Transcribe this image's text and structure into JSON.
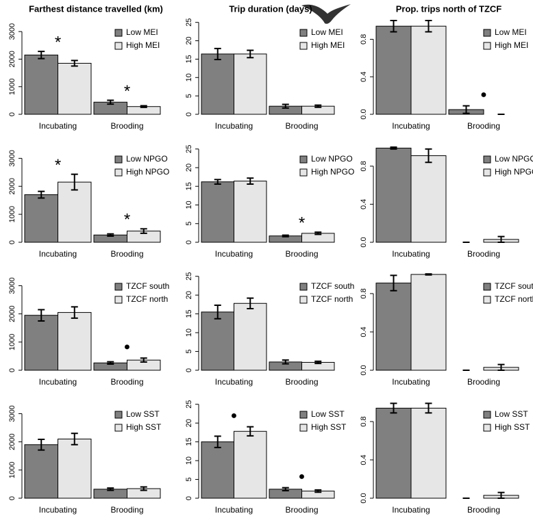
{
  "chart_data": [
    {
      "type": "bar",
      "title": "Farthest distance travelled (km)",
      "categories": [
        "Incubating",
        "Brooding"
      ],
      "annotations": [
        "*",
        "*"
      ],
      "series": [
        {
          "name": "Low MEI",
          "color": "#808080",
          "values": [
            2150,
            440
          ],
          "errors": [
            130,
            70
          ]
        },
        {
          "name": "High MEI",
          "color": "#e6e6e6",
          "values": [
            1850,
            280
          ],
          "errors": [
            100,
            30
          ]
        }
      ],
      "ylim": [
        0,
        3400
      ],
      "yticks": [
        0,
        1000,
        2000,
        3000
      ]
    },
    {
      "type": "bar",
      "title": "Trip duration (days)",
      "categories": [
        "Incubating",
        "Brooding"
      ],
      "annotations": [
        null,
        null
      ],
      "series": [
        {
          "name": "Low MEI",
          "color": "#808080",
          "values": [
            16.4,
            2.2
          ],
          "errors": [
            1.5,
            0.5
          ]
        },
        {
          "name": "High MEI",
          "color": "#e6e6e6",
          "values": [
            16.4,
            2.2
          ],
          "errors": [
            1.0,
            0.3
          ]
        }
      ],
      "ylim": [
        0,
        25.5
      ],
      "yticks": [
        0,
        5,
        10,
        15,
        20,
        25
      ]
    },
    {
      "type": "bar",
      "title": "Prop. trips north of TZCF",
      "categories": [
        "Incubating",
        "Brooding"
      ],
      "annotations": [
        null,
        "●"
      ],
      "series": [
        {
          "name": "Low MEI",
          "color": "#808080",
          "values": [
            0.94,
            0.05
          ],
          "errors": [
            0.06,
            0.04
          ]
        },
        {
          "name": "High MEI",
          "color": "#e6e6e6",
          "values": [
            0.94,
            0.0
          ],
          "errors": [
            0.06,
            0.0
          ]
        }
      ],
      "ylim": [
        0,
        1.0
      ],
      "yticks": [
        {
          "value": 0,
          "label": "0.0"
        },
        0.4,
        0.8
      ]
    },
    {
      "type": "bar",
      "categories": [
        "Incubating",
        "Brooding"
      ],
      "annotations": [
        "*",
        "*"
      ],
      "series": [
        {
          "name": "Low NPGO",
          "color": "#808080",
          "values": [
            1700,
            260
          ],
          "errors": [
            120,
            40
          ]
        },
        {
          "name": "High NPGO",
          "color": "#e6e6e6",
          "values": [
            2150,
            400
          ],
          "errors": [
            280,
            80
          ]
        }
      ],
      "ylim": [
        0,
        3400
      ],
      "yticks": [
        0,
        1000,
        2000,
        3000
      ]
    },
    {
      "type": "bar",
      "categories": [
        "Incubating",
        "Brooding"
      ],
      "annotations": [
        null,
        "*"
      ],
      "series": [
        {
          "name": "Low NPGO",
          "color": "#808080",
          "values": [
            16.2,
            1.7
          ],
          "errors": [
            0.6,
            0.2
          ]
        },
        {
          "name": "High NPGO",
          "color": "#e6e6e6",
          "values": [
            16.4,
            2.4
          ],
          "errors": [
            0.8,
            0.3
          ]
        }
      ],
      "ylim": [
        0,
        25.5
      ],
      "yticks": [
        0,
        5,
        10,
        15,
        20,
        25
      ]
    },
    {
      "type": "bar",
      "categories": [
        "Incubating",
        "Brooding"
      ],
      "annotations": [
        null,
        null
      ],
      "series": [
        {
          "name": "Low NPGO",
          "color": "#808080",
          "values": [
            0.99,
            0.0
          ],
          "errors": [
            0.01,
            0.0
          ]
        },
        {
          "name": "High NPGO",
          "color": "#e6e6e6",
          "values": [
            0.91,
            0.03
          ],
          "errors": [
            0.07,
            0.03
          ]
        }
      ],
      "ylim": [
        0,
        1.0
      ],
      "yticks": [
        {
          "value": 0,
          "label": "0.0"
        },
        0.4,
        0.8
      ]
    },
    {
      "type": "bar",
      "categories": [
        "Incubating",
        "Brooding"
      ],
      "annotations": [
        null,
        "●"
      ],
      "series": [
        {
          "name": "TZCF south",
          "color": "#808080",
          "values": [
            1950,
            260
          ],
          "errors": [
            200,
            40
          ]
        },
        {
          "name": "TZCF north",
          "color": "#e6e6e6",
          "values": [
            2050,
            360
          ],
          "errors": [
            200,
            70
          ]
        }
      ],
      "ylim": [
        0,
        3400
      ],
      "yticks": [
        0,
        1000,
        2000,
        3000
      ]
    },
    {
      "type": "bar",
      "categories": [
        "Incubating",
        "Brooding"
      ],
      "annotations": [
        null,
        null
      ],
      "series": [
        {
          "name": "TZCF south",
          "color": "#808080",
          "values": [
            15.5,
            2.2
          ],
          "errors": [
            1.8,
            0.5
          ]
        },
        {
          "name": "TZCF north",
          "color": "#e6e6e6",
          "values": [
            17.8,
            2.1
          ],
          "errors": [
            1.4,
            0.3
          ]
        }
      ],
      "ylim": [
        0,
        25.5
      ],
      "yticks": [
        0,
        5,
        10,
        15,
        20,
        25
      ]
    },
    {
      "type": "bar",
      "categories": [
        "Incubating",
        "Brooding"
      ],
      "annotations": [
        null,
        null
      ],
      "series": [
        {
          "name": "TZCF south",
          "color": "#808080",
          "values": [
            0.91,
            0.0
          ],
          "errors": [
            0.08,
            0.0
          ]
        },
        {
          "name": "TZCF north",
          "color": "#e6e6e6",
          "values": [
            1.0,
            0.03
          ],
          "errors": [
            0.005,
            0.03
          ]
        }
      ],
      "ylim": [
        0,
        1.0
      ],
      "yticks": [
        {
          "value": 0,
          "label": "0.0"
        },
        0.4,
        0.8
      ]
    },
    {
      "type": "bar",
      "categories": [
        "Incubating",
        "Brooding"
      ],
      "annotations": [
        null,
        null
      ],
      "series": [
        {
          "name": "Low SST",
          "color": "#808080",
          "values": [
            1900,
            320
          ],
          "errors": [
            190,
            40
          ]
        },
        {
          "name": "High SST",
          "color": "#e6e6e6",
          "values": [
            2100,
            340
          ],
          "errors": [
            200,
            60
          ]
        }
      ],
      "ylim": [
        0,
        3400
      ],
      "yticks": [
        0,
        1000,
        2000,
        3000
      ]
    },
    {
      "type": "bar",
      "categories": [
        "Incubating",
        "Brooding"
      ],
      "annotations": [
        "●",
        "●"
      ],
      "series": [
        {
          "name": "Low SST",
          "color": "#808080",
          "values": [
            15.0,
            2.4
          ],
          "errors": [
            1.5,
            0.4
          ]
        },
        {
          "name": "High SST",
          "color": "#e6e6e6",
          "values": [
            17.8,
            1.9
          ],
          "errors": [
            1.2,
            0.3
          ]
        }
      ],
      "ylim": [
        0,
        25.5
      ],
      "yticks": [
        0,
        5,
        10,
        15,
        20,
        25
      ]
    },
    {
      "type": "bar",
      "categories": [
        "Incubating",
        "Brooding"
      ],
      "annotations": [
        null,
        null
      ],
      "series": [
        {
          "name": "Low SST",
          "color": "#808080",
          "values": [
            0.94,
            0.0
          ],
          "errors": [
            0.05,
            0.0
          ]
        },
        {
          "name": "High SST",
          "color": "#e6e6e6",
          "values": [
            0.94,
            0.03
          ],
          "errors": [
            0.05,
            0.03
          ]
        }
      ],
      "ylim": [
        0,
        1.0
      ],
      "yticks": [
        {
          "value": 0,
          "label": "0.0"
        },
        0.4,
        0.8
      ]
    }
  ]
}
